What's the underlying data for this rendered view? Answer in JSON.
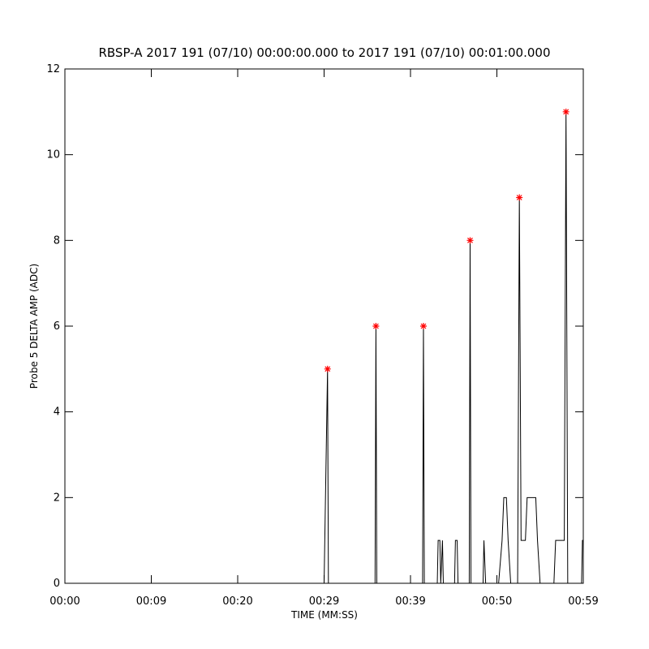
{
  "chart_data": {
    "type": "line",
    "title": "RBSP-A 2017 191 (07/10) 00:00:00.000 to 2017 191 (07/10) 00:01:00.000",
    "x_label": "TIME (MM:SS)",
    "y_label": "Probe 5 DELTA AMP (ADC)",
    "xlim": [
      0,
      60
    ],
    "ylim": [
      0,
      12
    ],
    "xticks": [
      {
        "value": 0,
        "label": "00:00"
      },
      {
        "value": 10,
        "label": "00:09"
      },
      {
        "value": 20,
        "label": "00:20"
      },
      {
        "value": 30,
        "label": "00:29"
      },
      {
        "value": 40,
        "label": "00:39"
      },
      {
        "value": 50,
        "label": "00:50"
      },
      {
        "value": 60,
        "label": "00:59"
      }
    ],
    "yticks": [
      0,
      2,
      4,
      6,
      8,
      10,
      12
    ],
    "color": "#000000",
    "x": [
      0,
      30.0,
      30.4,
      30.5,
      35.9,
      36.0,
      36.1,
      41.4,
      41.5,
      41.6,
      43.1,
      43.2,
      43.4,
      43.5,
      43.7,
      43.8,
      45.1,
      45.2,
      45.4,
      45.5,
      46.8,
      46.9,
      47.0,
      48.4,
      48.5,
      48.7,
      50.2,
      50.6,
      50.8,
      51.1,
      51.3,
      51.6,
      52.4,
      52.6,
      52.8,
      53.3,
      53.5,
      54.5,
      54.7,
      55.0,
      56.6,
      56.8,
      57.8,
      58.0,
      58.2,
      59.8,
      59.9,
      60
    ],
    "values": [
      0,
      0,
      5,
      0,
      0,
      6,
      0,
      0,
      6,
      0,
      0,
      1,
      1,
      0,
      1,
      0,
      0,
      1,
      1,
      0,
      0,
      8,
      0,
      0,
      1,
      0,
      0,
      1,
      2,
      2,
      1,
      0,
      0,
      9,
      1,
      1,
      2,
      2,
      1,
      0,
      0,
      1,
      1,
      11,
      0,
      0,
      1,
      1
    ],
    "peaks": {
      "color": "#ff0000",
      "x": [
        30.4,
        36.0,
        41.5,
        46.9,
        52.6,
        58.0
      ],
      "values": [
        5,
        6,
        6,
        8,
        9,
        11
      ]
    }
  }
}
